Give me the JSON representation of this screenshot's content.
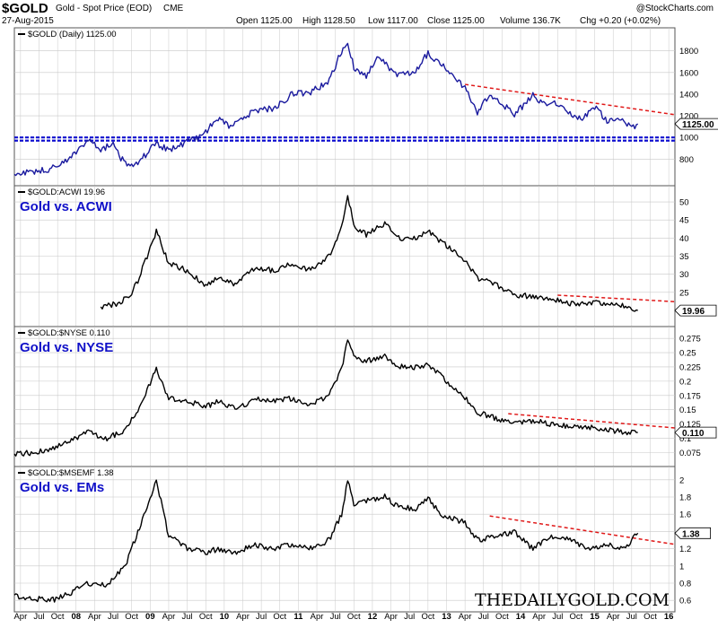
{
  "header": {
    "symbol": "$GOLD",
    "description": "Gold - Spot Price (EOD)",
    "exchange": "CME",
    "date": "27-Aug-2015",
    "open": "Open 1125.00",
    "high": "High 1128.50",
    "low": "Low 1117.00",
    "close": "Close 1125.00",
    "volume": "Volume 136.7K",
    "change": "Chg +0.20 (+0.02%)",
    "source": "@StockCharts.com"
  },
  "watermark": "THEDAILYGOLD.COM",
  "colors": {
    "gold_line": "#1a1a9e",
    "ratio_line": "#000000",
    "trend_dashed": "#e01818",
    "support_dashed": "#1010d0",
    "annotation": "#1010c8",
    "grid": "#c8c8c8"
  },
  "chart_data": [
    {
      "type": "line",
      "title": "$GOLD (Daily) 1125.00",
      "last_value_label": "1125.00",
      "x_tick_labels": [
        "Apr",
        "Jul",
        "Oct",
        "08",
        "Apr",
        "Jul",
        "Oct",
        "09",
        "Apr",
        "Jul",
        "Oct",
        "10",
        "Apr",
        "Jul",
        "Oct",
        "11",
        "Apr",
        "Jul",
        "Oct",
        "12",
        "Apr",
        "Jul",
        "Oct",
        "13",
        "Apr",
        "Jul",
        "Oct",
        "14",
        "Apr",
        "Jul",
        "Oct",
        "15",
        "Apr",
        "Jul",
        "Oct",
        "16"
      ],
      "x_range": [
        "2007-03",
        "2016-02"
      ],
      "y_ticks": [
        800,
        1000,
        1200,
        1400,
        1600,
        1800
      ],
      "ylim": [
        620,
        1930
      ],
      "grid": true,
      "series": [
        {
          "color": "#1a1a9e",
          "x": [
            "2007-03",
            "2007-06",
            "2007-09",
            "2007-12",
            "2008-03",
            "2008-05",
            "2008-07",
            "2008-08",
            "2008-10",
            "2008-11",
            "2009-02",
            "2009-04",
            "2009-06",
            "2009-09",
            "2009-12",
            "2010-02",
            "2010-06",
            "2010-09",
            "2010-12",
            "2011-03",
            "2011-06",
            "2011-08",
            "2011-09",
            "2011-10",
            "2011-12",
            "2012-02",
            "2012-05",
            "2012-08",
            "2012-10",
            "2012-12",
            "2013-02",
            "2013-04",
            "2013-06",
            "2013-08",
            "2013-10",
            "2013-12",
            "2014-03",
            "2014-05",
            "2014-07",
            "2014-09",
            "2014-11",
            "2015-01",
            "2015-03",
            "2015-05",
            "2015-07",
            "2015-08"
          ],
          "values": [
            660,
            680,
            710,
            800,
            990,
            880,
            950,
            820,
            730,
            760,
            950,
            880,
            935,
            1000,
            1170,
            1100,
            1250,
            1270,
            1400,
            1420,
            1520,
            1800,
            1880,
            1650,
            1570,
            1750,
            1560,
            1620,
            1780,
            1680,
            1590,
            1450,
            1230,
            1400,
            1310,
            1210,
            1390,
            1290,
            1320,
            1220,
            1170,
            1280,
            1160,
            1190,
            1090,
            1125
          ]
        }
      ],
      "annotations": [
        {
          "kind": "trendline",
          "color": "#e01818",
          "from": [
            "2013-04",
            1490
          ],
          "to": [
            "2016-02",
            1210
          ]
        },
        {
          "kind": "horizontal",
          "color": "#1010d0",
          "value": 1000
        },
        {
          "kind": "horizontal",
          "color": "#1010d0",
          "value": 970
        }
      ]
    },
    {
      "type": "line",
      "title": "$GOLD:ACWI 19.96",
      "annotation_text": "Gold vs. ACWI",
      "last_value_label": "19.96",
      "y_ticks": [
        25,
        30,
        35,
        40,
        45,
        50
      ],
      "ylim": [
        17.5,
        52
      ],
      "grid": true,
      "series": [
        {
          "color": "#000000",
          "x": [
            "2008-05",
            "2008-08",
            "2008-10",
            "2008-11",
            "2009-02",
            "2009-04",
            "2009-07",
            "2009-10",
            "2009-12",
            "2010-03",
            "2010-06",
            "2010-09",
            "2010-12",
            "2011-03",
            "2011-06",
            "2011-08",
            "2011-09",
            "2011-10",
            "2011-12",
            "2012-03",
            "2012-05",
            "2012-08",
            "2012-10",
            "2012-12",
            "2013-02",
            "2013-04",
            "2013-06",
            "2013-09",
            "2013-12",
            "2014-03",
            "2014-06",
            "2014-09",
            "2014-12",
            "2015-03",
            "2015-06",
            "2015-08"
          ],
          "values": [
            21,
            22,
            25,
            28,
            42,
            33,
            31,
            27,
            29,
            27,
            32,
            31,
            33,
            31,
            35,
            43,
            52,
            43,
            41,
            44,
            40,
            40,
            42,
            39,
            37,
            34,
            29,
            27,
            24,
            24,
            23,
            22,
            22,
            22,
            21,
            19.96
          ]
        }
      ],
      "annotations": [
        {
          "kind": "trendline",
          "color": "#e01818",
          "from": [
            "2014-07",
            24.2
          ],
          "to": [
            "2016-02",
            22.4
          ]
        }
      ]
    },
    {
      "type": "line",
      "title": "$GOLD:$NYSE 0.110",
      "annotation_text": "Gold vs. NYSE",
      "last_value_label": "0.110",
      "y_ticks": [
        0.075,
        0.1,
        0.125,
        0.15,
        0.175,
        0.2,
        0.225,
        0.25,
        0.275
      ],
      "ylim": [
        0.063,
        0.28
      ],
      "grid": true,
      "series": [
        {
          "color": "#000000",
          "x": [
            "2007-03",
            "2007-06",
            "2007-09",
            "2007-12",
            "2008-03",
            "2008-06",
            "2008-09",
            "2008-11",
            "2009-02",
            "2009-04",
            "2009-07",
            "2009-10",
            "2009-12",
            "2010-03",
            "2010-06",
            "2010-09",
            "2010-12",
            "2011-03",
            "2011-06",
            "2011-08",
            "2011-09",
            "2011-10",
            "2011-12",
            "2012-03",
            "2012-05",
            "2012-08",
            "2012-10",
            "2012-12",
            "2013-02",
            "2013-04",
            "2013-06",
            "2013-09",
            "2013-12",
            "2014-03",
            "2014-06",
            "2014-09",
            "2014-12",
            "2015-03",
            "2015-06",
            "2015-08"
          ],
          "values": [
            0.072,
            0.075,
            0.082,
            0.095,
            0.11,
            0.1,
            0.115,
            0.15,
            0.22,
            0.17,
            0.165,
            0.155,
            0.165,
            0.15,
            0.17,
            0.165,
            0.17,
            0.16,
            0.175,
            0.22,
            0.275,
            0.24,
            0.235,
            0.245,
            0.225,
            0.225,
            0.23,
            0.21,
            0.19,
            0.17,
            0.145,
            0.135,
            0.125,
            0.13,
            0.125,
            0.12,
            0.12,
            0.115,
            0.11,
            0.11
          ]
        }
      ],
      "annotations": [
        {
          "kind": "trendline",
          "color": "#e01818",
          "from": [
            "2013-11",
            0.143
          ],
          "to": [
            "2016-02",
            0.118
          ]
        }
      ]
    },
    {
      "type": "line",
      "title": "$GOLD:$MSEMF 1.38",
      "annotation_text": "Gold vs. EMs",
      "last_value_label": "1.38",
      "y_ticks": [
        0.6,
        0.8,
        1.0,
        1.2,
        1.4,
        1.6,
        1.8,
        2.0
      ],
      "ylim": [
        0.55,
        2.05
      ],
      "grid": true,
      "series": [
        {
          "color": "#000000",
          "x": [
            "2007-03",
            "2007-06",
            "2007-09",
            "2007-12",
            "2008-03",
            "2008-06",
            "2008-09",
            "2008-11",
            "2009-02",
            "2009-04",
            "2009-07",
            "2009-10",
            "2009-12",
            "2010-03",
            "2010-06",
            "2010-09",
            "2010-12",
            "2011-03",
            "2011-06",
            "2011-08",
            "2011-09",
            "2011-10",
            "2011-12",
            "2012-03",
            "2012-05",
            "2012-08",
            "2012-10",
            "2012-12",
            "2013-02",
            "2013-04",
            "2013-06",
            "2013-09",
            "2013-12",
            "2014-03",
            "2014-06",
            "2014-09",
            "2014-12",
            "2015-03",
            "2015-06",
            "2015-07",
            "2015-08"
          ],
          "values": [
            0.65,
            0.62,
            0.6,
            0.68,
            0.8,
            0.78,
            1.0,
            1.4,
            2.0,
            1.35,
            1.2,
            1.15,
            1.2,
            1.15,
            1.25,
            1.2,
            1.25,
            1.2,
            1.3,
            1.6,
            2.0,
            1.7,
            1.75,
            1.8,
            1.7,
            1.65,
            1.8,
            1.6,
            1.55,
            1.5,
            1.3,
            1.35,
            1.4,
            1.2,
            1.35,
            1.3,
            1.2,
            1.25,
            1.2,
            1.3,
            1.38
          ]
        }
      ],
      "annotations": [
        {
          "kind": "trendline",
          "color": "#e01818",
          "from": [
            "2013-08",
            1.58
          ],
          "to": [
            "2016-02",
            1.25
          ]
        }
      ]
    }
  ]
}
